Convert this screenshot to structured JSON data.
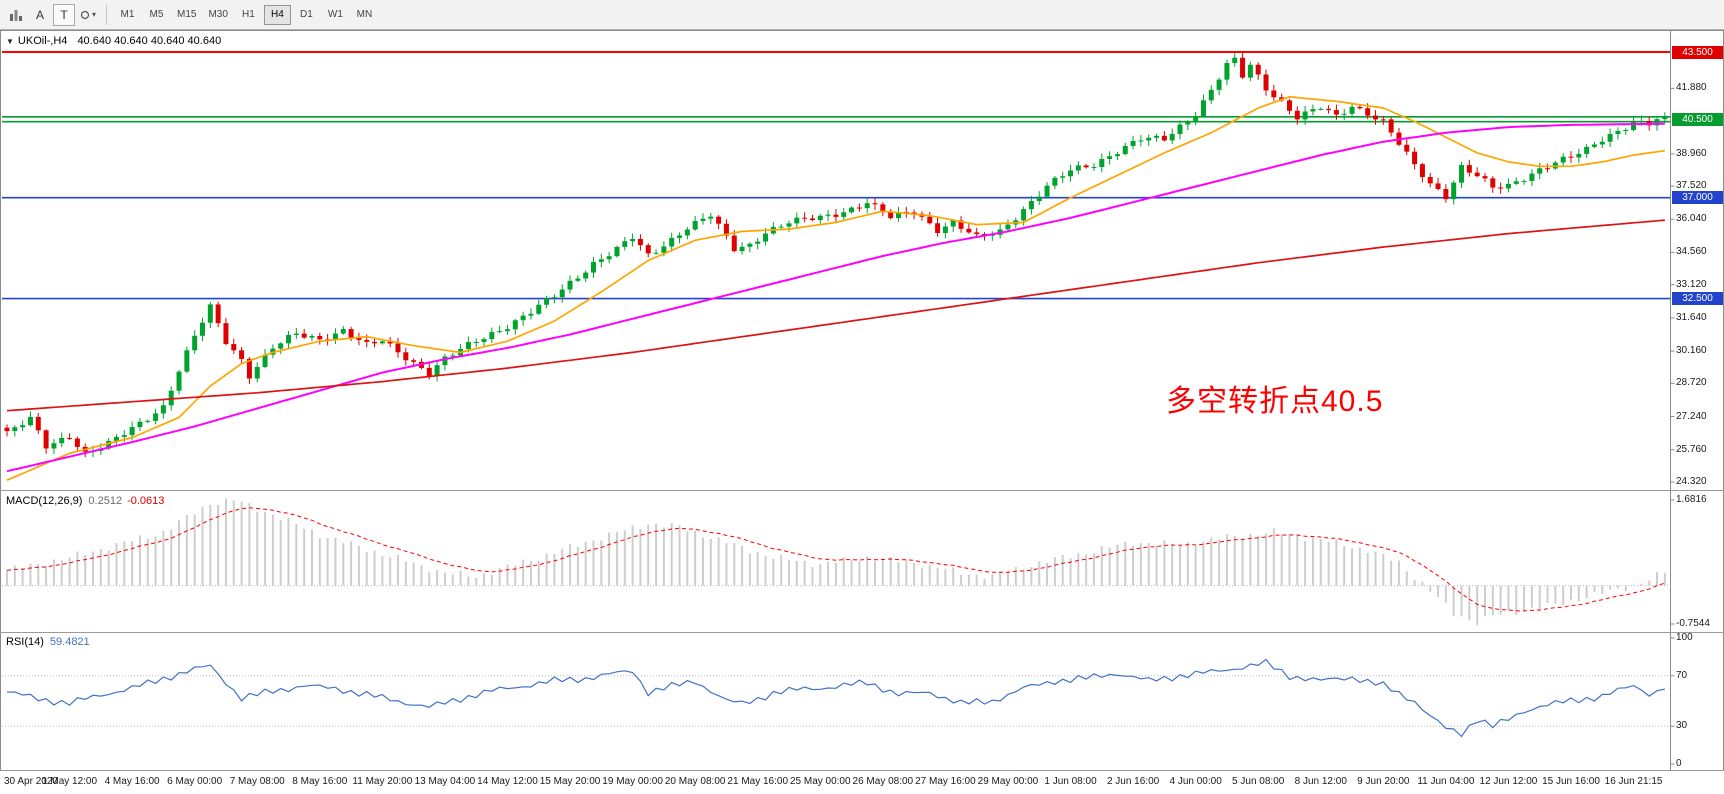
{
  "toolbar": {
    "left_buttons": [
      {
        "name": "charts-icon",
        "label": ""
      },
      {
        "name": "text-tool",
        "label": "A"
      },
      {
        "name": "label-tool",
        "label": "T"
      },
      {
        "name": "shapes-dropdown",
        "label": "▾"
      }
    ],
    "timeframes": [
      "M1",
      "M5",
      "M15",
      "M30",
      "H1",
      "H4",
      "D1",
      "W1",
      "MN"
    ],
    "active_timeframe": "H4"
  },
  "chart_header": {
    "collapse_icon": "▼",
    "symbol": "UKOil-,H4",
    "ohlc": "40.640 40.640 40.640 40.640"
  },
  "indicators": {
    "macd": {
      "name": "MACD(12,26,9)",
      "value_main": "0.2512",
      "value_signal": "-0.0613",
      "scale": [
        "1.6816",
        "-0.7544"
      ]
    },
    "rsi": {
      "name": "RSI(14)",
      "value": "59.4821",
      "scale": [
        "100",
        "70",
        "30",
        "0"
      ]
    }
  },
  "annotation": {
    "text": "多空转折点40.5",
    "color": "#FF0000"
  },
  "price_axis": {
    "labels": [
      "41.880",
      "38.960",
      "37.520",
      "36.040",
      "34.560",
      "33.120",
      "31.640",
      "30.160",
      "28.720",
      "27.240",
      "25.760",
      "24.320"
    ],
    "badges": [
      {
        "text": "43.500",
        "price": 43.5,
        "color": "#E00000"
      },
      {
        "text": "40.500",
        "price": 40.5,
        "color": "#089B30"
      },
      {
        "text": "37.000",
        "price": 37.0,
        "color": "#2244CC"
      },
      {
        "text": "32.500",
        "price": 32.5,
        "color": "#2244CC"
      }
    ]
  },
  "time_axis": {
    "labels": [
      "30 Apr 2020",
      "1 May 12:00",
      "4 May 16:00",
      "6 May 00:00",
      "7 May 08:00",
      "8 May 16:00",
      "11 May 20:00",
      "13 May 04:00",
      "14 May 12:00",
      "15 May 20:00",
      "19 May 00:00",
      "20 May 08:00",
      "21 May 16:00",
      "25 May 00:00",
      "26 May 08:00",
      "27 May 16:00",
      "29 May 00:00",
      "1 Jun 08:00",
      "2 Jun 16:00",
      "4 Jun 00:00",
      "5 Jun 08:00",
      "8 Jun 12:00",
      "9 Jun 20:00",
      "11 Jun 04:00",
      "12 Jun 12:00",
      "15 Jun 16:00",
      "16 Jun 21:15"
    ]
  },
  "colors": {
    "bull": "#00A32E",
    "bear": "#E00000",
    "ma_fast": "#FFA500",
    "ma_mid": "#FF00FF",
    "ma_slow": "#DC1414",
    "macd_hist": "#CDCDCD",
    "macd_signal": "#FF0000",
    "rsi": "#3E72C8",
    "hline_red": "#FF0000",
    "hline_green": "#089B30",
    "hline_blue": "#2244CC",
    "border": "#8A8A8A",
    "grid": "#BBBBBB"
  },
  "chart_data": {
    "type": "candlestick",
    "symbol": "UKOil-",
    "timeframe": "H4",
    "bars": 213,
    "bars_per_label": 8,
    "last_close": 40.64,
    "price_range": [
      24.32,
      43.5
    ],
    "price_anchors": [
      [
        0,
        26.5
      ],
      [
        3,
        27.1
      ],
      [
        5,
        25.9
      ],
      [
        8,
        26.4
      ],
      [
        10,
        25.6
      ],
      [
        13,
        26.0
      ],
      [
        16,
        26.7
      ],
      [
        20,
        27.7
      ],
      [
        22,
        29.3
      ],
      [
        24,
        30.8
      ],
      [
        26,
        32.1
      ],
      [
        28,
        30.6
      ],
      [
        30,
        29.8
      ],
      [
        31,
        29.1
      ],
      [
        34,
        30.3
      ],
      [
        37,
        30.9
      ],
      [
        40,
        30.7
      ],
      [
        43,
        31.1
      ],
      [
        46,
        30.4
      ],
      [
        48,
        30.6
      ],
      [
        51,
        29.9
      ],
      [
        54,
        29.2
      ],
      [
        56,
        29.8
      ],
      [
        60,
        30.6
      ],
      [
        64,
        31.3
      ],
      [
        67,
        31.9
      ],
      [
        70,
        32.6
      ],
      [
        72,
        33.2
      ],
      [
        75,
        34.1
      ],
      [
        78,
        34.7
      ],
      [
        80,
        35.2
      ],
      [
        82,
        34.4
      ],
      [
        84,
        34.9
      ],
      [
        87,
        35.7
      ],
      [
        90,
        36.2
      ],
      [
        93,
        34.7
      ],
      [
        95,
        34.9
      ],
      [
        97,
        35.5
      ],
      [
        100,
        35.9
      ],
      [
        104,
        36.1
      ],
      [
        107,
        36.4
      ],
      [
        110,
        36.8
      ],
      [
        113,
        36.1
      ],
      [
        116,
        36.4
      ],
      [
        119,
        35.6
      ],
      [
        121,
        35.9
      ],
      [
        124,
        35.2
      ],
      [
        127,
        35.5
      ],
      [
        130,
        36.5
      ],
      [
        133,
        37.5
      ],
      [
        136,
        38.2
      ],
      [
        139,
        38.5
      ],
      [
        142,
        39.1
      ],
      [
        145,
        39.6
      ],
      [
        148,
        39.6
      ],
      [
        150,
        40.2
      ],
      [
        152,
        40.8
      ],
      [
        154,
        41.8
      ],
      [
        156,
        42.9
      ],
      [
        157,
        43.1
      ],
      [
        158,
        42.4
      ],
      [
        159,
        42.9
      ],
      [
        161,
        41.9
      ],
      [
        163,
        41.3
      ],
      [
        165,
        40.6
      ],
      [
        168,
        41.0
      ],
      [
        170,
        40.6
      ],
      [
        172,
        41.1
      ],
      [
        174,
        40.8
      ],
      [
        176,
        40.4
      ],
      [
        178,
        39.4
      ],
      [
        180,
        38.4
      ],
      [
        182,
        37.6
      ],
      [
        184,
        37.1
      ],
      [
        186,
        38.4
      ],
      [
        188,
        38.0
      ],
      [
        190,
        37.4
      ],
      [
        192,
        37.5
      ],
      [
        194,
        37.9
      ],
      [
        196,
        38.3
      ],
      [
        198,
        38.6
      ],
      [
        200,
        38.8
      ],
      [
        202,
        39.1
      ],
      [
        204,
        39.6
      ],
      [
        206,
        40.0
      ],
      [
        208,
        40.4
      ],
      [
        210,
        40.3
      ],
      [
        212,
        40.64
      ]
    ],
    "candle_noise": {
      "close_a": 0.11,
      "close_b": 0.07,
      "wick": 0.2
    },
    "horizontal_lines": [
      {
        "price": 43.5,
        "color": "#FF0000",
        "width": 2
      },
      {
        "price": 40.61,
        "color": "#089B30",
        "width": 1.6
      },
      {
        "price": 40.39,
        "color": "#089B30",
        "width": 1.6
      },
      {
        "price": 37.0,
        "color": "#2244CC",
        "width": 1.6
      },
      {
        "price": 32.5,
        "color": "#2244CC",
        "width": 1.6
      }
    ],
    "moving_averages": [
      {
        "name": "ma-fast",
        "color": "#FFA500",
        "anchors": [
          [
            0,
            24.4
          ],
          [
            8,
            25.6
          ],
          [
            16,
            26.3
          ],
          [
            22,
            27.2
          ],
          [
            26,
            28.6
          ],
          [
            30,
            29.6
          ],
          [
            34,
            30.1
          ],
          [
            40,
            30.6
          ],
          [
            46,
            30.8
          ],
          [
            52,
            30.4
          ],
          [
            58,
            30.1
          ],
          [
            64,
            30.6
          ],
          [
            70,
            31.5
          ],
          [
            76,
            32.8
          ],
          [
            82,
            34.2
          ],
          [
            88,
            35.1
          ],
          [
            94,
            35.5
          ],
          [
            100,
            35.6
          ],
          [
            106,
            35.9
          ],
          [
            112,
            36.4
          ],
          [
            118,
            36.2
          ],
          [
            124,
            35.8
          ],
          [
            130,
            35.9
          ],
          [
            136,
            37.0
          ],
          [
            142,
            38.0
          ],
          [
            148,
            39.0
          ],
          [
            154,
            39.9
          ],
          [
            160,
            41.0
          ],
          [
            164,
            41.5
          ],
          [
            170,
            41.3
          ],
          [
            176,
            41.0
          ],
          [
            180,
            40.4
          ],
          [
            184,
            39.7
          ],
          [
            188,
            39.0
          ],
          [
            192,
            38.6
          ],
          [
            196,
            38.4
          ],
          [
            200,
            38.4
          ],
          [
            204,
            38.6
          ],
          [
            208,
            38.9
          ],
          [
            212,
            39.1
          ]
        ]
      },
      {
        "name": "ma-mid",
        "color": "#FF00FF",
        "anchors": [
          [
            0,
            24.8
          ],
          [
            16,
            26.1
          ],
          [
            24,
            26.8
          ],
          [
            32,
            27.6
          ],
          [
            40,
            28.4
          ],
          [
            48,
            29.2
          ],
          [
            56,
            29.8
          ],
          [
            64,
            30.3
          ],
          [
            72,
            30.9
          ],
          [
            80,
            31.6
          ],
          [
            88,
            32.3
          ],
          [
            96,
            33.0
          ],
          [
            104,
            33.7
          ],
          [
            112,
            34.4
          ],
          [
            120,
            35.0
          ],
          [
            128,
            35.5
          ],
          [
            136,
            36.1
          ],
          [
            144,
            36.8
          ],
          [
            152,
            37.5
          ],
          [
            160,
            38.2
          ],
          [
            168,
            38.9
          ],
          [
            176,
            39.5
          ],
          [
            184,
            39.9
          ],
          [
            192,
            40.15
          ],
          [
            200,
            40.25
          ],
          [
            212,
            40.3
          ]
        ]
      },
      {
        "name": "ma-slow",
        "color": "#DC1414",
        "anchors": [
          [
            0,
            27.5
          ],
          [
            16,
            27.9
          ],
          [
            32,
            28.3
          ],
          [
            48,
            28.8
          ],
          [
            64,
            29.4
          ],
          [
            80,
            30.1
          ],
          [
            96,
            30.9
          ],
          [
            112,
            31.7
          ],
          [
            128,
            32.5
          ],
          [
            144,
            33.3
          ],
          [
            160,
            34.1
          ],
          [
            176,
            34.8
          ],
          [
            192,
            35.4
          ],
          [
            212,
            36.0
          ]
        ]
      }
    ],
    "macd": {
      "range": [
        -0.7544,
        1.6816
      ],
      "current_main": 0.2512,
      "current_signal": -0.0613,
      "anchors": [
        [
          0,
          0.3
        ],
        [
          8,
          0.55
        ],
        [
          20,
          1.05
        ],
        [
          26,
          1.62
        ],
        [
          29,
          1.68
        ],
        [
          34,
          1.4
        ],
        [
          40,
          1.0
        ],
        [
          48,
          0.62
        ],
        [
          56,
          0.25
        ],
        [
          60,
          0.18
        ],
        [
          68,
          0.55
        ],
        [
          76,
          0.95
        ],
        [
          82,
          1.22
        ],
        [
          86,
          1.15
        ],
        [
          92,
          0.85
        ],
        [
          98,
          0.55
        ],
        [
          104,
          0.42
        ],
        [
          110,
          0.55
        ],
        [
          116,
          0.45
        ],
        [
          122,
          0.25
        ],
        [
          126,
          0.18
        ],
        [
          132,
          0.45
        ],
        [
          138,
          0.65
        ],
        [
          144,
          0.85
        ],
        [
          150,
          0.8
        ],
        [
          156,
          0.95
        ],
        [
          162,
          1.05
        ],
        [
          168,
          0.9
        ],
        [
          174,
          0.7
        ],
        [
          178,
          0.45
        ],
        [
          182,
          -0.1
        ],
        [
          185,
          -0.55
        ],
        [
          188,
          -0.72
        ],
        [
          190,
          -0.6
        ],
        [
          194,
          -0.48
        ],
        [
          198,
          -0.38
        ],
        [
          202,
          -0.22
        ],
        [
          206,
          -0.08
        ],
        [
          209,
          0.05
        ],
        [
          212,
          0.2512
        ]
      ]
    },
    "rsi": {
      "range": [
        0,
        100
      ],
      "levels": [
        70,
        30
      ],
      "current": 59.4821,
      "anchors": [
        [
          0,
          57
        ],
        [
          4,
          52
        ],
        [
          8,
          48
        ],
        [
          12,
          55
        ],
        [
          16,
          60
        ],
        [
          20,
          68
        ],
        [
          24,
          75
        ],
        [
          26,
          78
        ],
        [
          30,
          52
        ],
        [
          34,
          58
        ],
        [
          38,
          62
        ],
        [
          42,
          60
        ],
        [
          46,
          55
        ],
        [
          50,
          50
        ],
        [
          54,
          45
        ],
        [
          58,
          52
        ],
        [
          62,
          58
        ],
        [
          66,
          62
        ],
        [
          70,
          66
        ],
        [
          74,
          68
        ],
        [
          78,
          72
        ],
        [
          80,
          74
        ],
        [
          82,
          57
        ],
        [
          84,
          60
        ],
        [
          88,
          66
        ],
        [
          92,
          50
        ],
        [
          94,
          48
        ],
        [
          98,
          56
        ],
        [
          102,
          60
        ],
        [
          106,
          61
        ],
        [
          110,
          65
        ],
        [
          114,
          55
        ],
        [
          118,
          57
        ],
        [
          122,
          48
        ],
        [
          126,
          50
        ],
        [
          130,
          60
        ],
        [
          134,
          66
        ],
        [
          138,
          68
        ],
        [
          142,
          72
        ],
        [
          146,
          66
        ],
        [
          150,
          70
        ],
        [
          154,
          73
        ],
        [
          158,
          77
        ],
        [
          161,
          80
        ],
        [
          164,
          70
        ],
        [
          168,
          66
        ],
        [
          172,
          69
        ],
        [
          176,
          62
        ],
        [
          180,
          50
        ],
        [
          182,
          38
        ],
        [
          184,
          28
        ],
        [
          186,
          24
        ],
        [
          188,
          36
        ],
        [
          190,
          30
        ],
        [
          192,
          35
        ],
        [
          194,
          42
        ],
        [
          196,
          46
        ],
        [
          200,
          50
        ],
        [
          204,
          54
        ],
        [
          208,
          62
        ],
        [
          210,
          56
        ],
        [
          212,
          59.48
        ]
      ]
    }
  }
}
